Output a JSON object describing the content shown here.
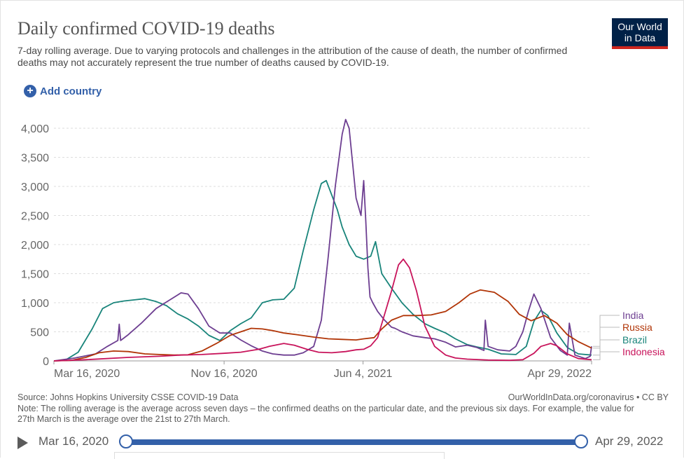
{
  "header": {
    "title": "Daily confirmed COVID-19 deaths",
    "subtitle": "7-day rolling average. Due to varying protocols and challenges in the attribution of the cause of death, the number of confirmed deaths may not accurately represent the true number of deaths caused by COVID-19.",
    "logo_line1": "Our World",
    "logo_line2": "in Data"
  },
  "controls": {
    "add_country": "Add country"
  },
  "footer": {
    "source": "Source: Johns Hopkins University CSSE COVID-19 Data",
    "url": "OurWorldInData.org/coronavirus • CC BY",
    "note": "Note: The rolling average is the average across seven days – the confirmed deaths on the particular date, and the previous six days. For example, the value for 27th March is the average over the 21st to 27th March."
  },
  "timeline": {
    "start": "Mar 16, 2020",
    "end": "Apr 29, 2022"
  },
  "colors": {
    "india": "#6d3e91",
    "russia": "#b13507",
    "brazil": "#18847a",
    "indonesia": "#c8145b",
    "accent": "#3360a9"
  },
  "chart_data": {
    "type": "line",
    "title": "Daily confirmed COVID-19 deaths",
    "xlabel": "",
    "ylabel": "",
    "ylim": [
      0,
      4200
    ],
    "yticks": [
      0,
      500,
      1000,
      1500,
      2000,
      2500,
      3000,
      3500,
      4000
    ],
    "ytick_labels": [
      "0",
      "500",
      "1,000",
      "1,500",
      "2,000",
      "2,500",
      "3,000",
      "3,500",
      "4,000"
    ],
    "xlim": [
      "2020-03-16",
      "2022-04-29"
    ],
    "xticks": [
      "2020-03-16",
      "2020-11-16",
      "2021-06-04",
      "2022-04-29"
    ],
    "xtick_labels": [
      "Mar 16, 2020",
      "Nov 16, 2020",
      "Jun 4, 2021",
      "Apr 29, 2022"
    ],
    "grid": "horizontal dashed",
    "legend": "right, end-of-line labels",
    "series": [
      {
        "name": "Brazil",
        "color": "#18847a",
        "x": [
          "2020-03-16",
          "2020-04-01",
          "2020-04-20",
          "2020-05-10",
          "2020-05-25",
          "2020-06-10",
          "2020-06-25",
          "2020-07-10",
          "2020-07-25",
          "2020-08-10",
          "2020-08-25",
          "2020-09-10",
          "2020-09-25",
          "2020-10-10",
          "2020-10-25",
          "2020-11-10",
          "2020-11-25",
          "2020-12-10",
          "2020-12-25",
          "2021-01-10",
          "2021-01-25",
          "2021-02-10",
          "2021-02-25",
          "2021-03-10",
          "2021-03-25",
          "2021-04-05",
          "2021-04-12",
          "2021-04-20",
          "2021-04-28",
          "2021-05-05",
          "2021-05-15",
          "2021-05-25",
          "2021-06-05",
          "2021-06-15",
          "2021-06-22",
          "2021-07-01",
          "2021-07-15",
          "2021-07-30",
          "2021-08-15",
          "2021-09-01",
          "2021-09-15",
          "2021-10-01",
          "2021-10-15",
          "2021-11-01",
          "2021-11-15",
          "2021-12-01",
          "2021-12-20",
          "2022-01-10",
          "2022-01-25",
          "2022-02-05",
          "2022-02-15",
          "2022-02-25",
          "2022-03-10",
          "2022-03-25",
          "2022-04-10",
          "2022-04-29"
        ],
        "y": [
          0,
          10,
          150,
          550,
          900,
          1000,
          1030,
          1050,
          1070,
          1020,
          950,
          810,
          720,
          600,
          440,
          350,
          520,
          640,
          740,
          1000,
          1050,
          1060,
          1250,
          1900,
          2600,
          3050,
          3100,
          2850,
          2600,
          2300,
          2000,
          1800,
          1750,
          1800,
          2050,
          1500,
          1250,
          1000,
          800,
          640,
          560,
          480,
          380,
          280,
          240,
          200,
          120,
          110,
          250,
          680,
          870,
          780,
          480,
          230,
          120,
          100
        ]
      },
      {
        "name": "India",
        "color": "#6d3e91",
        "x": [
          "2020-03-16",
          "2020-04-15",
          "2020-05-15",
          "2020-06-01",
          "2020-06-16",
          "2020-06-18",
          "2020-06-20",
          "2020-07-01",
          "2020-07-20",
          "2020-08-10",
          "2020-08-30",
          "2020-09-15",
          "2020-09-25",
          "2020-10-10",
          "2020-10-25",
          "2020-11-10",
          "2020-11-25",
          "2020-12-10",
          "2020-12-25",
          "2021-01-10",
          "2021-01-25",
          "2021-02-10",
          "2021-02-25",
          "2021-03-10",
          "2021-03-25",
          "2021-04-05",
          "2021-04-15",
          "2021-04-25",
          "2021-05-05",
          "2021-05-10",
          "2021-05-15",
          "2021-05-25",
          "2021-06-01",
          "2021-06-05",
          "2021-06-08",
          "2021-06-11",
          "2021-06-14",
          "2021-06-18",
          "2021-06-25",
          "2021-07-05",
          "2021-07-15",
          "2021-07-20",
          "2021-07-30",
          "2021-08-15",
          "2021-09-01",
          "2021-09-15",
          "2021-10-01",
          "2021-10-15",
          "2021-11-01",
          "2021-11-15",
          "2021-11-25",
          "2021-11-27",
          "2021-12-01",
          "2021-12-15",
          "2022-01-01",
          "2022-01-10",
          "2022-01-20",
          "2022-01-28",
          "2022-02-05",
          "2022-02-15",
          "2022-03-01",
          "2022-03-15",
          "2022-03-25",
          "2022-03-28",
          "2022-04-05",
          "2022-04-20",
          "2022-04-27",
          "2022-04-29"
        ],
        "y": [
          0,
          50,
          120,
          250,
          350,
          630,
          350,
          450,
          650,
          900,
          1050,
          1170,
          1150,
          900,
          600,
          480,
          480,
          360,
          260,
          170,
          120,
          100,
          100,
          140,
          250,
          700,
          1800,
          3000,
          3900,
          4150,
          4000,
          2800,
          2500,
          3100,
          2400,
          1600,
          1100,
          1000,
          850,
          700,
          580,
          560,
          500,
          430,
          400,
          380,
          320,
          240,
          270,
          230,
          180,
          700,
          250,
          190,
          170,
          250,
          500,
          850,
          1150,
          900,
          400,
          180,
          100,
          650,
          100,
          40,
          80,
          250
        ]
      },
      {
        "name": "Russia",
        "color": "#b13507",
        "x": [
          "2020-03-16",
          "2020-04-10",
          "2020-05-01",
          "2020-05-20",
          "2020-06-10",
          "2020-07-01",
          "2020-07-25",
          "2020-08-15",
          "2020-09-05",
          "2020-09-25",
          "2020-10-15",
          "2020-11-05",
          "2020-11-25",
          "2020-12-10",
          "2020-12-25",
          "2021-01-10",
          "2021-01-25",
          "2021-02-10",
          "2021-03-01",
          "2021-03-25",
          "2021-04-15",
          "2021-05-05",
          "2021-05-25",
          "2021-06-05",
          "2021-06-20",
          "2021-07-01",
          "2021-07-15",
          "2021-08-01",
          "2021-08-20",
          "2021-09-10",
          "2021-10-01",
          "2021-10-20",
          "2021-11-05",
          "2021-11-20",
          "2021-12-10",
          "2021-12-30",
          "2022-01-15",
          "2022-02-01",
          "2022-02-20",
          "2022-03-10",
          "2022-03-25",
          "2022-04-10",
          "2022-04-29"
        ],
        "y": [
          0,
          10,
          60,
          140,
          170,
          160,
          120,
          110,
          100,
          105,
          170,
          300,
          440,
          500,
          560,
          550,
          520,
          480,
          450,
          410,
          380,
          370,
          360,
          380,
          400,
          550,
          700,
          780,
          780,
          790,
          850,
          1000,
          1150,
          1220,
          1180,
          1020,
          800,
          690,
          780,
          650,
          450,
          330,
          220
        ]
      },
      {
        "name": "Indonesia",
        "color": "#c8145b",
        "x": [
          "2020-03-16",
          "2020-05-01",
          "2020-07-01",
          "2020-08-15",
          "2020-09-15",
          "2020-10-15",
          "2020-11-15",
          "2020-12-10",
          "2021-01-05",
          "2021-01-20",
          "2021-02-10",
          "2021-02-25",
          "2021-03-15",
          "2021-04-01",
          "2021-04-20",
          "2021-05-10",
          "2021-05-25",
          "2021-06-05",
          "2021-06-15",
          "2021-06-25",
          "2021-07-05",
          "2021-07-15",
          "2021-07-25",
          "2021-08-01",
          "2021-08-10",
          "2021-08-20",
          "2021-09-01",
          "2021-09-15",
          "2021-10-01",
          "2021-10-15",
          "2021-11-01",
          "2021-12-01",
          "2022-01-01",
          "2022-01-20",
          "2022-02-05",
          "2022-02-15",
          "2022-03-01",
          "2022-03-10",
          "2022-03-25",
          "2022-04-10",
          "2022-04-29"
        ],
        "y": [
          0,
          20,
          60,
          80,
          100,
          110,
          130,
          150,
          200,
          250,
          300,
          270,
          200,
          150,
          140,
          160,
          190,
          200,
          260,
          400,
          800,
          1200,
          1650,
          1750,
          1600,
          1200,
          600,
          250,
          100,
          50,
          30,
          15,
          10,
          20,
          130,
          250,
          300,
          260,
          120,
          40,
          20
        ]
      }
    ]
  }
}
